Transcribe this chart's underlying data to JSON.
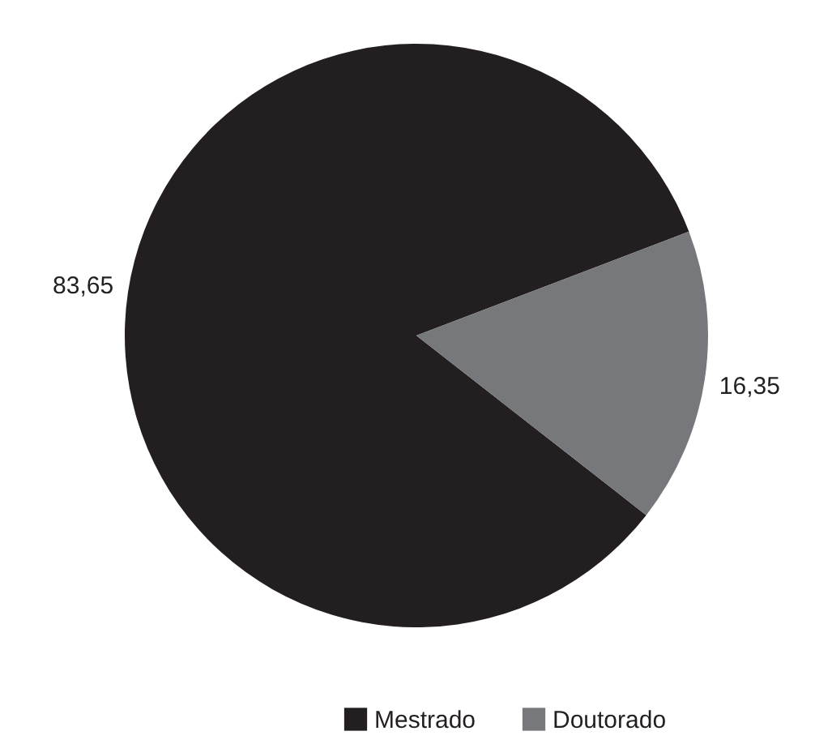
{
  "chart_data": {
    "type": "pie",
    "categories": [
      "Mestrado",
      "Doutorado"
    ],
    "values": [
      83.65,
      16.35
    ],
    "colors": [
      "#231f20",
      "#77787b"
    ],
    "value_labels": [
      "83,65",
      "16,35"
    ],
    "legend": "bottom"
  }
}
